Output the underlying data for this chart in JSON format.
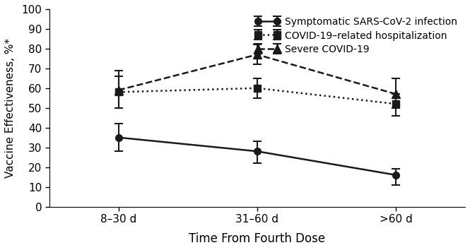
{
  "x_labels": [
    "8–30 d",
    "31–60 d",
    ">60 d"
  ],
  "x_positions": [
    1,
    2,
    3
  ],
  "series": [
    {
      "label": "Symptomatic SARS-CoV-2 infection",
      "values": [
        35,
        28,
        16
      ],
      "yerr_lower": [
        7,
        6,
        5
      ],
      "yerr_upper": [
        7,
        5,
        3
      ],
      "linestyle": "solid",
      "marker": "o",
      "color": "#1a1a1a",
      "linewidth": 1.8,
      "markersize": 7
    },
    {
      "label": "COVID-19–related hospitalization",
      "values": [
        58,
        60,
        52
      ],
      "yerr_lower": [
        8,
        5,
        6
      ],
      "yerr_upper": [
        8,
        5,
        5
      ],
      "linestyle": "dotted",
      "marker": "s",
      "color": "#1a1a1a",
      "linewidth": 1.8,
      "markersize": 7
    },
    {
      "label": "Severe COVID-19",
      "values": [
        59,
        77,
        57
      ],
      "yerr_lower": [
        9,
        5,
        7
      ],
      "yerr_upper": [
        10,
        5,
        8
      ],
      "linestyle": "dashed",
      "marker": "^",
      "color": "#1a1a1a",
      "linewidth": 1.8,
      "markersize": 8
    }
  ],
  "ylabel": "Vaccine Effectiveness, %*",
  "xlabel": "Time From Fourth Dose",
  "ylim": [
    0,
    100
  ],
  "yticks": [
    0,
    10,
    20,
    30,
    40,
    50,
    60,
    70,
    80,
    90,
    100
  ],
  "background_color": "#ffffff",
  "figsize": [
    6.65,
    3.54
  ],
  "dpi": 100
}
